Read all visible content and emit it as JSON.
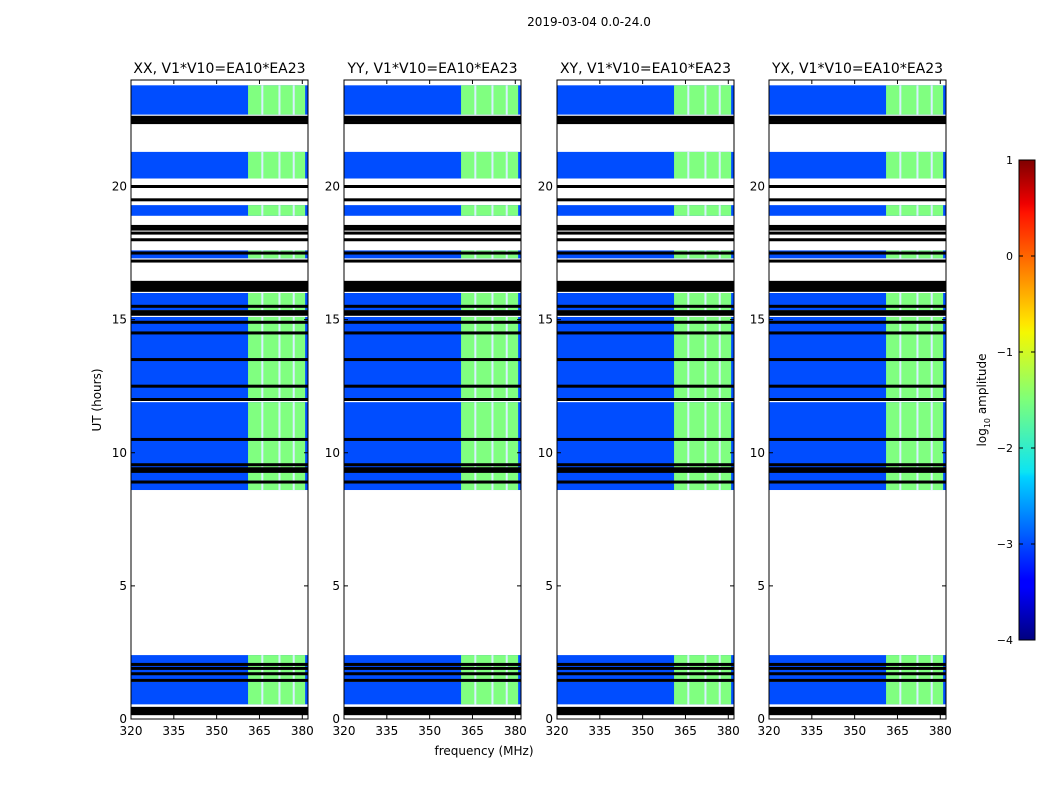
{
  "chart_data": {
    "type": "heatmap",
    "suptitle": "2019-03-04 0.0-24.0",
    "xlabel": "frequency (MHz)",
    "ylabel": "UT (hours)",
    "xlim": [
      320,
      382
    ],
    "ylim": [
      0,
      24
    ],
    "xticks": [
      320,
      335,
      350,
      365,
      380
    ],
    "yticks": [
      0,
      5,
      10,
      15,
      20
    ],
    "panels": [
      {
        "title": "XX, V1*V10=EA10*EA23",
        "pol": "XX"
      },
      {
        "title": "YY, V1*V10=EA10*EA23",
        "pol": "YY"
      },
      {
        "title": "XY, V1*V10=EA10*EA23",
        "pol": "XY"
      },
      {
        "title": "YX, V1*V10=EA10*EA23",
        "pol": "YX"
      }
    ],
    "colorbar": {
      "label": "log10 amplitude",
      "label_base": "log",
      "label_sub": "10",
      "label_rest": " amplitude",
      "range": [
        -4,
        1
      ],
      "ticks": [
        1,
        0,
        -1,
        -2,
        -3,
        -4
      ],
      "tick_labels": [
        "1",
        "0",
        "−1",
        "−2",
        "−3",
        "−4"
      ],
      "colormap": "jet"
    },
    "rfi_band_mhz": [
      361,
      381
    ],
    "rfi_channels_mhz": [
      366,
      372,
      377
    ],
    "background_level": -3.0,
    "rfi_level": -1.5,
    "data_segments_ut": [
      [
        0.55,
        1.4
      ],
      [
        1.5,
        2.4
      ],
      [
        8.6,
        11.9
      ],
      [
        12.0,
        15.1
      ],
      [
        15.35,
        16.0
      ],
      [
        17.3,
        17.6
      ],
      [
        18.9,
        19.3
      ],
      [
        20.3,
        21.3
      ],
      [
        22.7,
        23.8
      ]
    ],
    "flag_stripes_ut": [
      0.2,
      0.3,
      0.4,
      1.45,
      1.7,
      1.9,
      2.05,
      8.9,
      9.3,
      9.4,
      9.55,
      10.5,
      12.0,
      12.5,
      13.5,
      14.5,
      14.9,
      15.2,
      15.3,
      15.5,
      16.1,
      16.2,
      16.3,
      16.4,
      17.2,
      17.5,
      18.0,
      18.25,
      18.4,
      18.5,
      19.5,
      20.0,
      22.4,
      22.5,
      22.6
    ]
  }
}
